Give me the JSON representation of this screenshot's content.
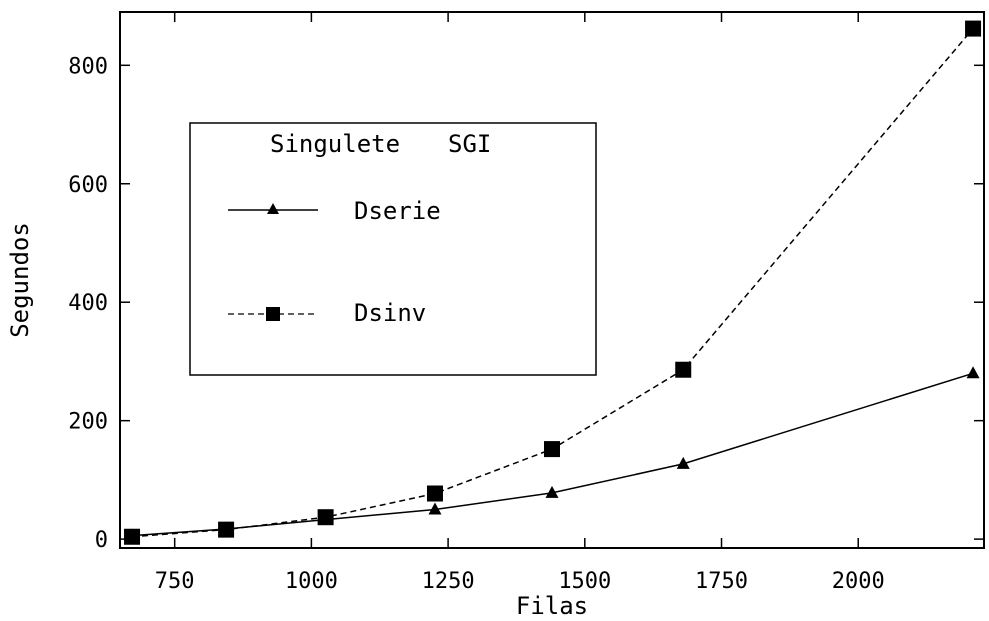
{
  "chart_data": {
    "type": "line",
    "xlabel": "Filas",
    "ylabel": "Segundos",
    "xlim": [
      650,
      2230
    ],
    "ylim": [
      -15,
      890
    ],
    "xticks": [
      750,
      1000,
      1250,
      1500,
      1750,
      2000
    ],
    "yticks": [
      0,
      200,
      400,
      600,
      800
    ],
    "legend": {
      "placement": "upper-left",
      "header_left": "Singulete",
      "header_right": "SGI"
    },
    "series": [
      {
        "name": "Dserie",
        "marker": "triangle",
        "line_style": "solid",
        "x": [
          672,
          844,
          1026,
          1226,
          1440,
          1680,
          2210
        ],
        "y": [
          6,
          17,
          33,
          50,
          78,
          127,
          280
        ]
      },
      {
        "name": "Dsinv",
        "marker": "square",
        "line_style": "dashed",
        "x": [
          672,
          844,
          1026,
          1226,
          1440,
          1680,
          2210
        ],
        "y": [
          4,
          16,
          37,
          77,
          152,
          286,
          862
        ]
      }
    ]
  }
}
